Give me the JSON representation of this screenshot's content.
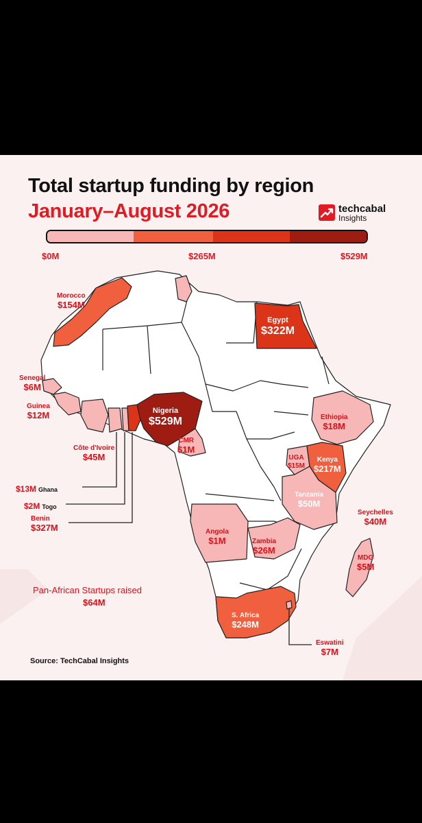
{
  "title": "Total startup funding by region",
  "subtitle": "January–August 2026",
  "brand": {
    "name": "techcabal",
    "sub": "Insights",
    "icon": "trend-up-icon"
  },
  "scale": {
    "min_label": "$0M",
    "mid_label": "$265M",
    "max_label": "$529M",
    "colors": [
      "#f7b7b7",
      "#f0603f",
      "#dc3418",
      "#9e1c12"
    ]
  },
  "colors": {
    "brand_red": "#e01b24",
    "no_data": "#ffffff",
    "border": "#222222"
  },
  "countries": {
    "morocco": {
      "name": "Morocco",
      "value": "$154M",
      "color": "#f0603f"
    },
    "egypt": {
      "name": "Egypt",
      "value": "$322M",
      "color": "#dc3418"
    },
    "senegal": {
      "name": "Senegal",
      "value": "$6M",
      "color": "#f7b7b7"
    },
    "guinea": {
      "name": "Guinea",
      "value": "$12M",
      "color": "#f7b7b7"
    },
    "cote": {
      "name": "Côte d'Ivoire",
      "value": "$45M",
      "color": "#f7b7b7"
    },
    "nigeria": {
      "name": "Nigeria",
      "value": "$529M",
      "color": "#9e1c12"
    },
    "cmr": {
      "name": "CMR",
      "value": "$1M",
      "color": "#f7b7b7"
    },
    "ethiopia": {
      "name": "Ethiopia",
      "value": "$18M",
      "color": "#f7b7b7"
    },
    "uganda": {
      "name": "UGA",
      "value": "$15M",
      "color": "#f7b7b7"
    },
    "kenya": {
      "name": "Kenya",
      "value": "$217M",
      "color": "#f0603f"
    },
    "ghana": {
      "name": "Ghana",
      "value": "$13M",
      "color": "#f7b7b7"
    },
    "togo": {
      "name": "Togo",
      "value": "$2M",
      "color": "#f7b7b7"
    },
    "benin": {
      "name": "Benin",
      "value": "$327M",
      "color": "#dc3418"
    },
    "tanzania": {
      "name": "Tanzania",
      "value": "$50M",
      "color": "#f7b7b7"
    },
    "seychelles": {
      "name": "Seychelles",
      "value": "$40M",
      "color": "#f7b7b7"
    },
    "angola": {
      "name": "Angola",
      "value": "$1M",
      "color": "#f7b7b7"
    },
    "zambia": {
      "name": "Zambia",
      "value": "$26M",
      "color": "#f7b7b7"
    },
    "madagascar": {
      "name": "MDG",
      "value": "$5M",
      "color": "#f7b7b7"
    },
    "south_africa": {
      "name": "S. Africa",
      "value": "$248M",
      "color": "#f0603f"
    },
    "eswatini": {
      "name": "Eswatini",
      "value": "$7M",
      "color": "#f7b7b7"
    },
    "tunisia": {
      "color": "#f7b7b7"
    }
  },
  "pan_african": {
    "text": "Pan-African Startups raised",
    "value": "$64M"
  },
  "source": "Source: TechCabal Insights"
}
